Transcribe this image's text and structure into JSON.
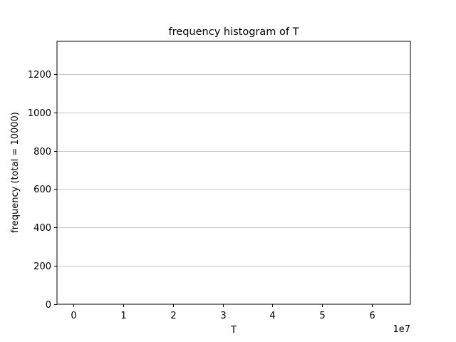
{
  "chart_data": {
    "type": "bar",
    "title": "frequency histogram of T",
    "xlabel": "T",
    "ylabel": "frequency (total = 10000)",
    "x_offset_label": "1e7",
    "x_ticks": [
      0,
      1,
      2,
      3,
      4,
      5,
      6
    ],
    "y_ticks": [
      0,
      200,
      400,
      600,
      800,
      1000,
      1200
    ],
    "xlim": [
      -0.33,
      6.77
    ],
    "ylim": [
      0,
      1370
    ],
    "grid": "horizontal",
    "legend": "none",
    "bins": [],
    "values": []
  },
  "colors": {
    "background": "#ffffff",
    "axes": "#000000",
    "grid": "#b0b0b0",
    "text": "#000000"
  }
}
